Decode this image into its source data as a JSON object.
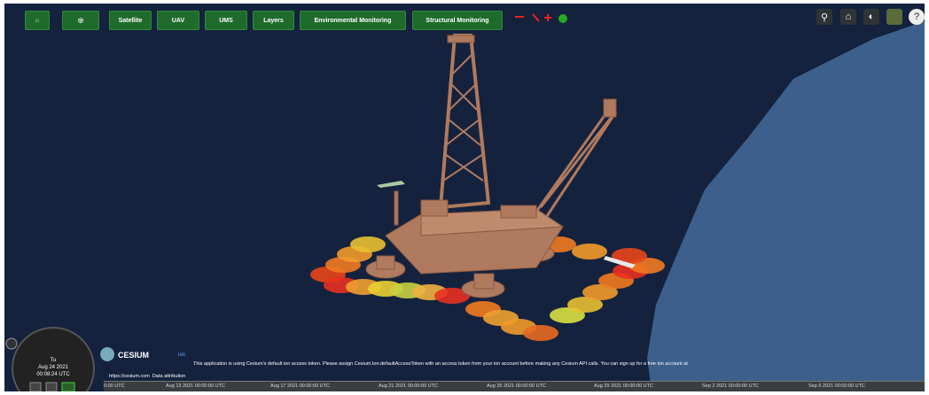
{
  "toolbar": {
    "buttons": [
      "Satellite",
      "UAV",
      "UMS",
      "Layers",
      "Environmental Monitoring",
      "Structural Monitoring"
    ]
  },
  "clock": {
    "weekday": "Tu",
    "date": "Aug 24 2021",
    "time": "00:08:24 UTC"
  },
  "credits": {
    "logo": "CESIUM",
    "logo_suffix": "ion",
    "message": "This application is using Cesium's default ion access token. Please assign Cesium.Ion.defaultAccessToken with an access token from your ion account before making any Cesium API calls. You can sign up for a free ion account at",
    "link": "https://cesium.com",
    "attribution": "Data attribution"
  },
  "timeline": {
    "labels": [
      "0:00 UTC",
      "Aug 13 2021 00:00:00 UTC",
      "Aug 17 2021 00:00:00 UTC",
      "Aug 21 2021 00:00:00 UTC",
      "Aug 25 2021 00:00:00 UTC",
      "Aug 29 2021 00:00:00 UTC",
      "Sep 2 2021 00:00:00 UTC",
      "Sep 6 2021 00:00:00 UTC"
    ]
  }
}
